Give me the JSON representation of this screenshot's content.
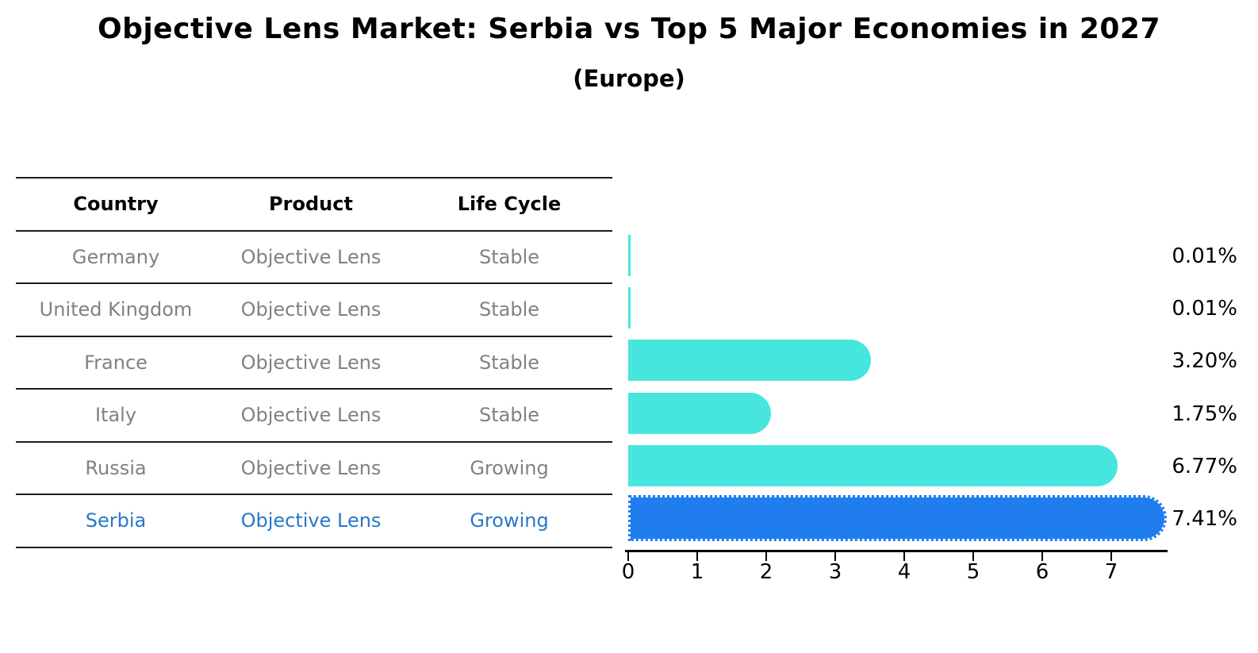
{
  "title": "Objective Lens Market: Serbia vs Top 5 Major Economies in 2027",
  "subtitle": "(Europe)",
  "table": {
    "headers": [
      "Country",
      "Product",
      "Life Cycle"
    ],
    "rows": [
      {
        "country": "Germany",
        "product": "Objective Lens",
        "life_cycle": "Stable",
        "highlight": false
      },
      {
        "country": "United Kingdom",
        "product": "Objective Lens",
        "life_cycle": "Stable",
        "highlight": false
      },
      {
        "country": "France",
        "product": "Objective Lens",
        "life_cycle": "Stable",
        "highlight": false
      },
      {
        "country": "Italy",
        "product": "Objective Lens",
        "life_cycle": "Stable",
        "highlight": false
      },
      {
        "country": "Russia",
        "product": "Objective Lens",
        "life_cycle": "Growing",
        "highlight": false
      },
      {
        "country": "Serbia",
        "product": "Objective Lens",
        "life_cycle": "Growing",
        "highlight": true
      }
    ]
  },
  "chart_data": {
    "type": "bar",
    "orientation": "horizontal",
    "title": "Objective Lens Market: Serbia vs Top 5 Major Economies in 2027 (Europe)",
    "categories": [
      "Germany",
      "United Kingdom",
      "France",
      "Italy",
      "Russia",
      "Serbia"
    ],
    "values": [
      0.01,
      0.01,
      3.2,
      1.75,
      6.77,
      7.41
    ],
    "value_labels": [
      "0.01%",
      "0.01%",
      "3.20%",
      "1.75%",
      "6.77%",
      "7.41%"
    ],
    "highlight_index": 5,
    "x_ticks": [
      0,
      1,
      2,
      3,
      4,
      5,
      6,
      7
    ],
    "xlim": [
      0,
      7.8
    ],
    "grid": false,
    "legend": "none"
  },
  "colors": {
    "bar_color": "#46e6df",
    "highlight_bar_color": "#1f7ded",
    "highlight_text_color": "#2878c8",
    "muted_text_color": "#818181",
    "line_color": "#1c1c1c"
  }
}
